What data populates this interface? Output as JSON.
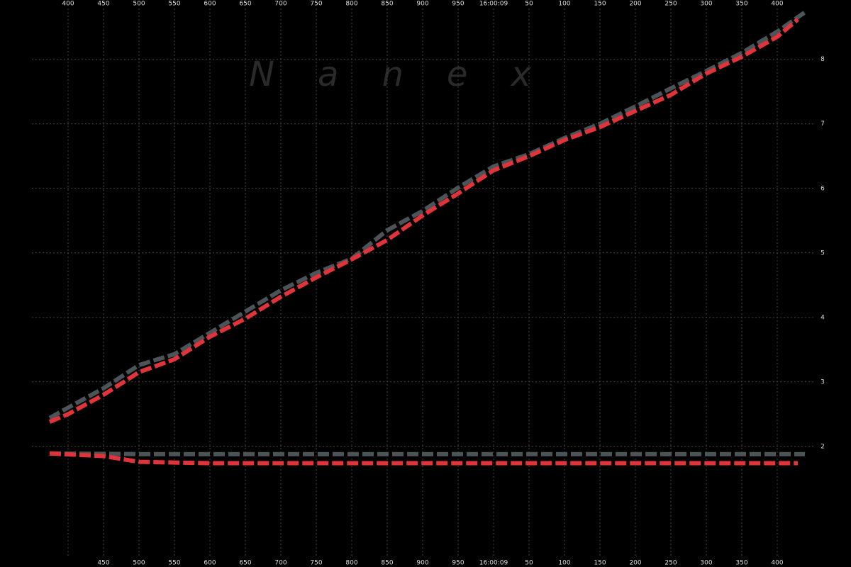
{
  "chart_data": {
    "type": "line",
    "watermark": "N    a    n    e    x",
    "xlim": [
      304,
      1504
    ],
    "ylim": [
      0.13,
      8.92
    ],
    "xticks": [
      400,
      450,
      500,
      550,
      600,
      650,
      700,
      750,
      800,
      850,
      900,
      950,
      {
        "value": 1000,
        "label": "16:00:09"
      },
      {
        "value": 1050,
        "label": "50"
      },
      {
        "value": 1100,
        "label": "100"
      },
      {
        "value": 1150,
        "label": "150"
      },
      {
        "value": 1200,
        "label": "200"
      },
      {
        "value": 1250,
        "label": "250"
      },
      {
        "value": 1300,
        "label": "300"
      },
      {
        "value": 1350,
        "label": "350"
      },
      {
        "value": 1400,
        "label": "400"
      }
    ],
    "xticks_bottom": [
      450,
      500,
      550,
      600,
      650,
      700,
      750,
      800,
      850,
      900,
      950,
      {
        "value": 1000,
        "label": "16:00:09"
      },
      {
        "value": 1050,
        "label": "50"
      },
      {
        "value": 1100,
        "label": "100"
      },
      {
        "value": 1150,
        "label": "150"
      },
      {
        "value": 1200,
        "label": "200"
      },
      {
        "value": 1250,
        "label": "250"
      },
      {
        "value": 1300,
        "label": "300"
      },
      {
        "value": 1350,
        "label": "350"
      },
      {
        "value": 1400,
        "label": "400"
      }
    ],
    "yticks": [
      2,
      3,
      4,
      5,
      6,
      7,
      8
    ],
    "grid": true,
    "series": [
      {
        "color": "#4b5559",
        "x": [
          374,
          400,
          450,
          500,
          550,
          600,
          650,
          700,
          750,
          800,
          850,
          900,
          950,
          1000,
          1050,
          1100,
          1150,
          1200,
          1250,
          1300,
          1350,
          1400,
          1439
        ],
        "values": [
          2.44,
          2.6,
          2.9,
          3.26,
          3.43,
          3.76,
          4.09,
          4.42,
          4.69,
          4.91,
          5.35,
          5.65,
          6.01,
          6.34,
          6.53,
          6.78,
          7.0,
          7.27,
          7.55,
          7.82,
          8.1,
          8.43,
          8.73
        ]
      },
      {
        "color": "#e0333a",
        "x": [
          374,
          400,
          450,
          500,
          550,
          600,
          650,
          700,
          750,
          800,
          850,
          900,
          950,
          1000,
          1050,
          1100,
          1150,
          1200,
          1250,
          1300,
          1350,
          1400,
          1429
        ],
        "values": [
          2.38,
          2.5,
          2.8,
          3.15,
          3.35,
          3.7,
          3.98,
          4.32,
          4.62,
          4.9,
          5.2,
          5.58,
          5.92,
          6.28,
          6.5,
          6.75,
          6.95,
          7.2,
          7.45,
          7.78,
          8.04,
          8.35,
          8.62
        ]
      },
      {
        "color": "#4b5559",
        "x": [
          374,
          500,
          600,
          700,
          800,
          900,
          1000,
          1100,
          1200,
          1300,
          1400,
          1439
        ],
        "values": [
          1.89,
          1.88,
          1.88,
          1.88,
          1.88,
          1.88,
          1.88,
          1.88,
          1.88,
          1.88,
          1.88,
          1.88
        ]
      },
      {
        "color": "#e0333a",
        "x": [
          374,
          450,
          500,
          550,
          600,
          700,
          800,
          900,
          1000,
          1100,
          1200,
          1300,
          1400,
          1429
        ],
        "values": [
          1.89,
          1.85,
          1.76,
          1.75,
          1.74,
          1.74,
          1.74,
          1.74,
          1.74,
          1.74,
          1.74,
          1.74,
          1.74,
          1.74
        ]
      }
    ]
  }
}
